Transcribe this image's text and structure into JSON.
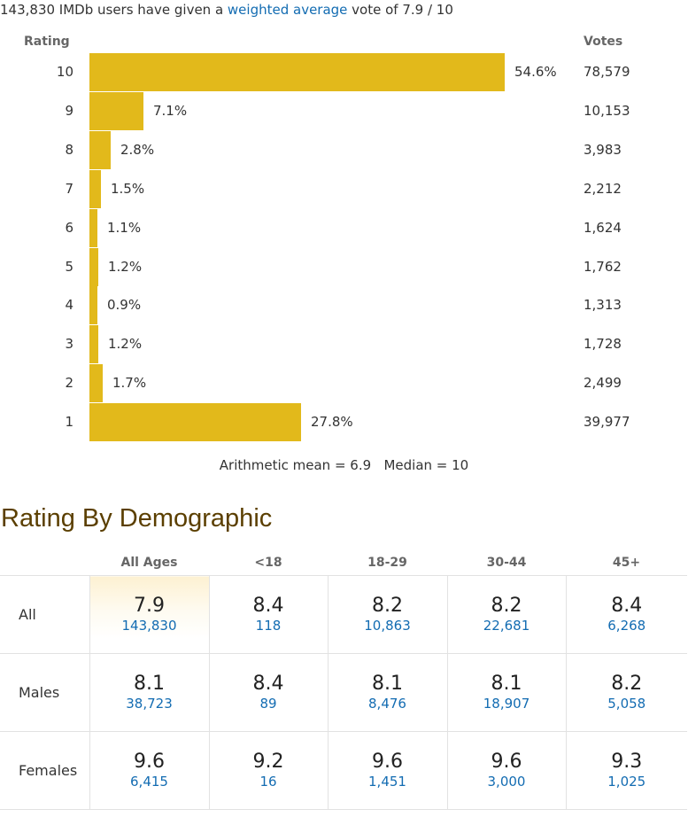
{
  "summary": {
    "prefix": "143,830 IMDb users have given a ",
    "link": "weighted average",
    "suffix": " vote of 7.9 / 10"
  },
  "histogram": {
    "header_rating": "Rating",
    "header_votes": "Votes",
    "bar_color": "#e2b91b",
    "rows": [
      {
        "rating": "10",
        "pct": "54.6%",
        "votes": "78,579"
      },
      {
        "rating": "9",
        "pct": "7.1%",
        "votes": "10,153"
      },
      {
        "rating": "8",
        "pct": "2.8%",
        "votes": "3,983"
      },
      {
        "rating": "7",
        "pct": "1.5%",
        "votes": "2,212"
      },
      {
        "rating": "6",
        "pct": "1.1%",
        "votes": "1,624"
      },
      {
        "rating": "5",
        "pct": "1.2%",
        "votes": "1,762"
      },
      {
        "rating": "4",
        "pct": "0.9%",
        "votes": "1,313"
      },
      {
        "rating": "3",
        "pct": "1.2%",
        "votes": "1,728"
      },
      {
        "rating": "2",
        "pct": "1.7%",
        "votes": "2,499"
      },
      {
        "rating": "1",
        "pct": "27.8%",
        "votes": "39,977"
      }
    ],
    "stats": "Arithmetic mean = 6.9   Median = 10"
  },
  "demographic": {
    "title": "Rating By Demographic",
    "columns": [
      "All Ages",
      "<18",
      "18-29",
      "30-44",
      "45+"
    ],
    "rows": [
      {
        "label": "All",
        "cells": [
          {
            "rating": "7.9",
            "votes": "143,830"
          },
          {
            "rating": "8.4",
            "votes": "118"
          },
          {
            "rating": "8.2",
            "votes": "10,863"
          },
          {
            "rating": "8.2",
            "votes": "22,681"
          },
          {
            "rating": "8.4",
            "votes": "6,268"
          }
        ]
      },
      {
        "label": "Males",
        "cells": [
          {
            "rating": "8.1",
            "votes": "38,723"
          },
          {
            "rating": "8.4",
            "votes": "89"
          },
          {
            "rating": "8.1",
            "votes": "8,476"
          },
          {
            "rating": "8.1",
            "votes": "18,907"
          },
          {
            "rating": "8.2",
            "votes": "5,058"
          }
        ]
      },
      {
        "label": "Females",
        "cells": [
          {
            "rating": "9.6",
            "votes": "6,415"
          },
          {
            "rating": "9.2",
            "votes": "16"
          },
          {
            "rating": "9.6",
            "votes": "1,451"
          },
          {
            "rating": "9.6",
            "votes": "3,000"
          },
          {
            "rating": "9.3",
            "votes": "1,025"
          }
        ]
      }
    ]
  }
}
